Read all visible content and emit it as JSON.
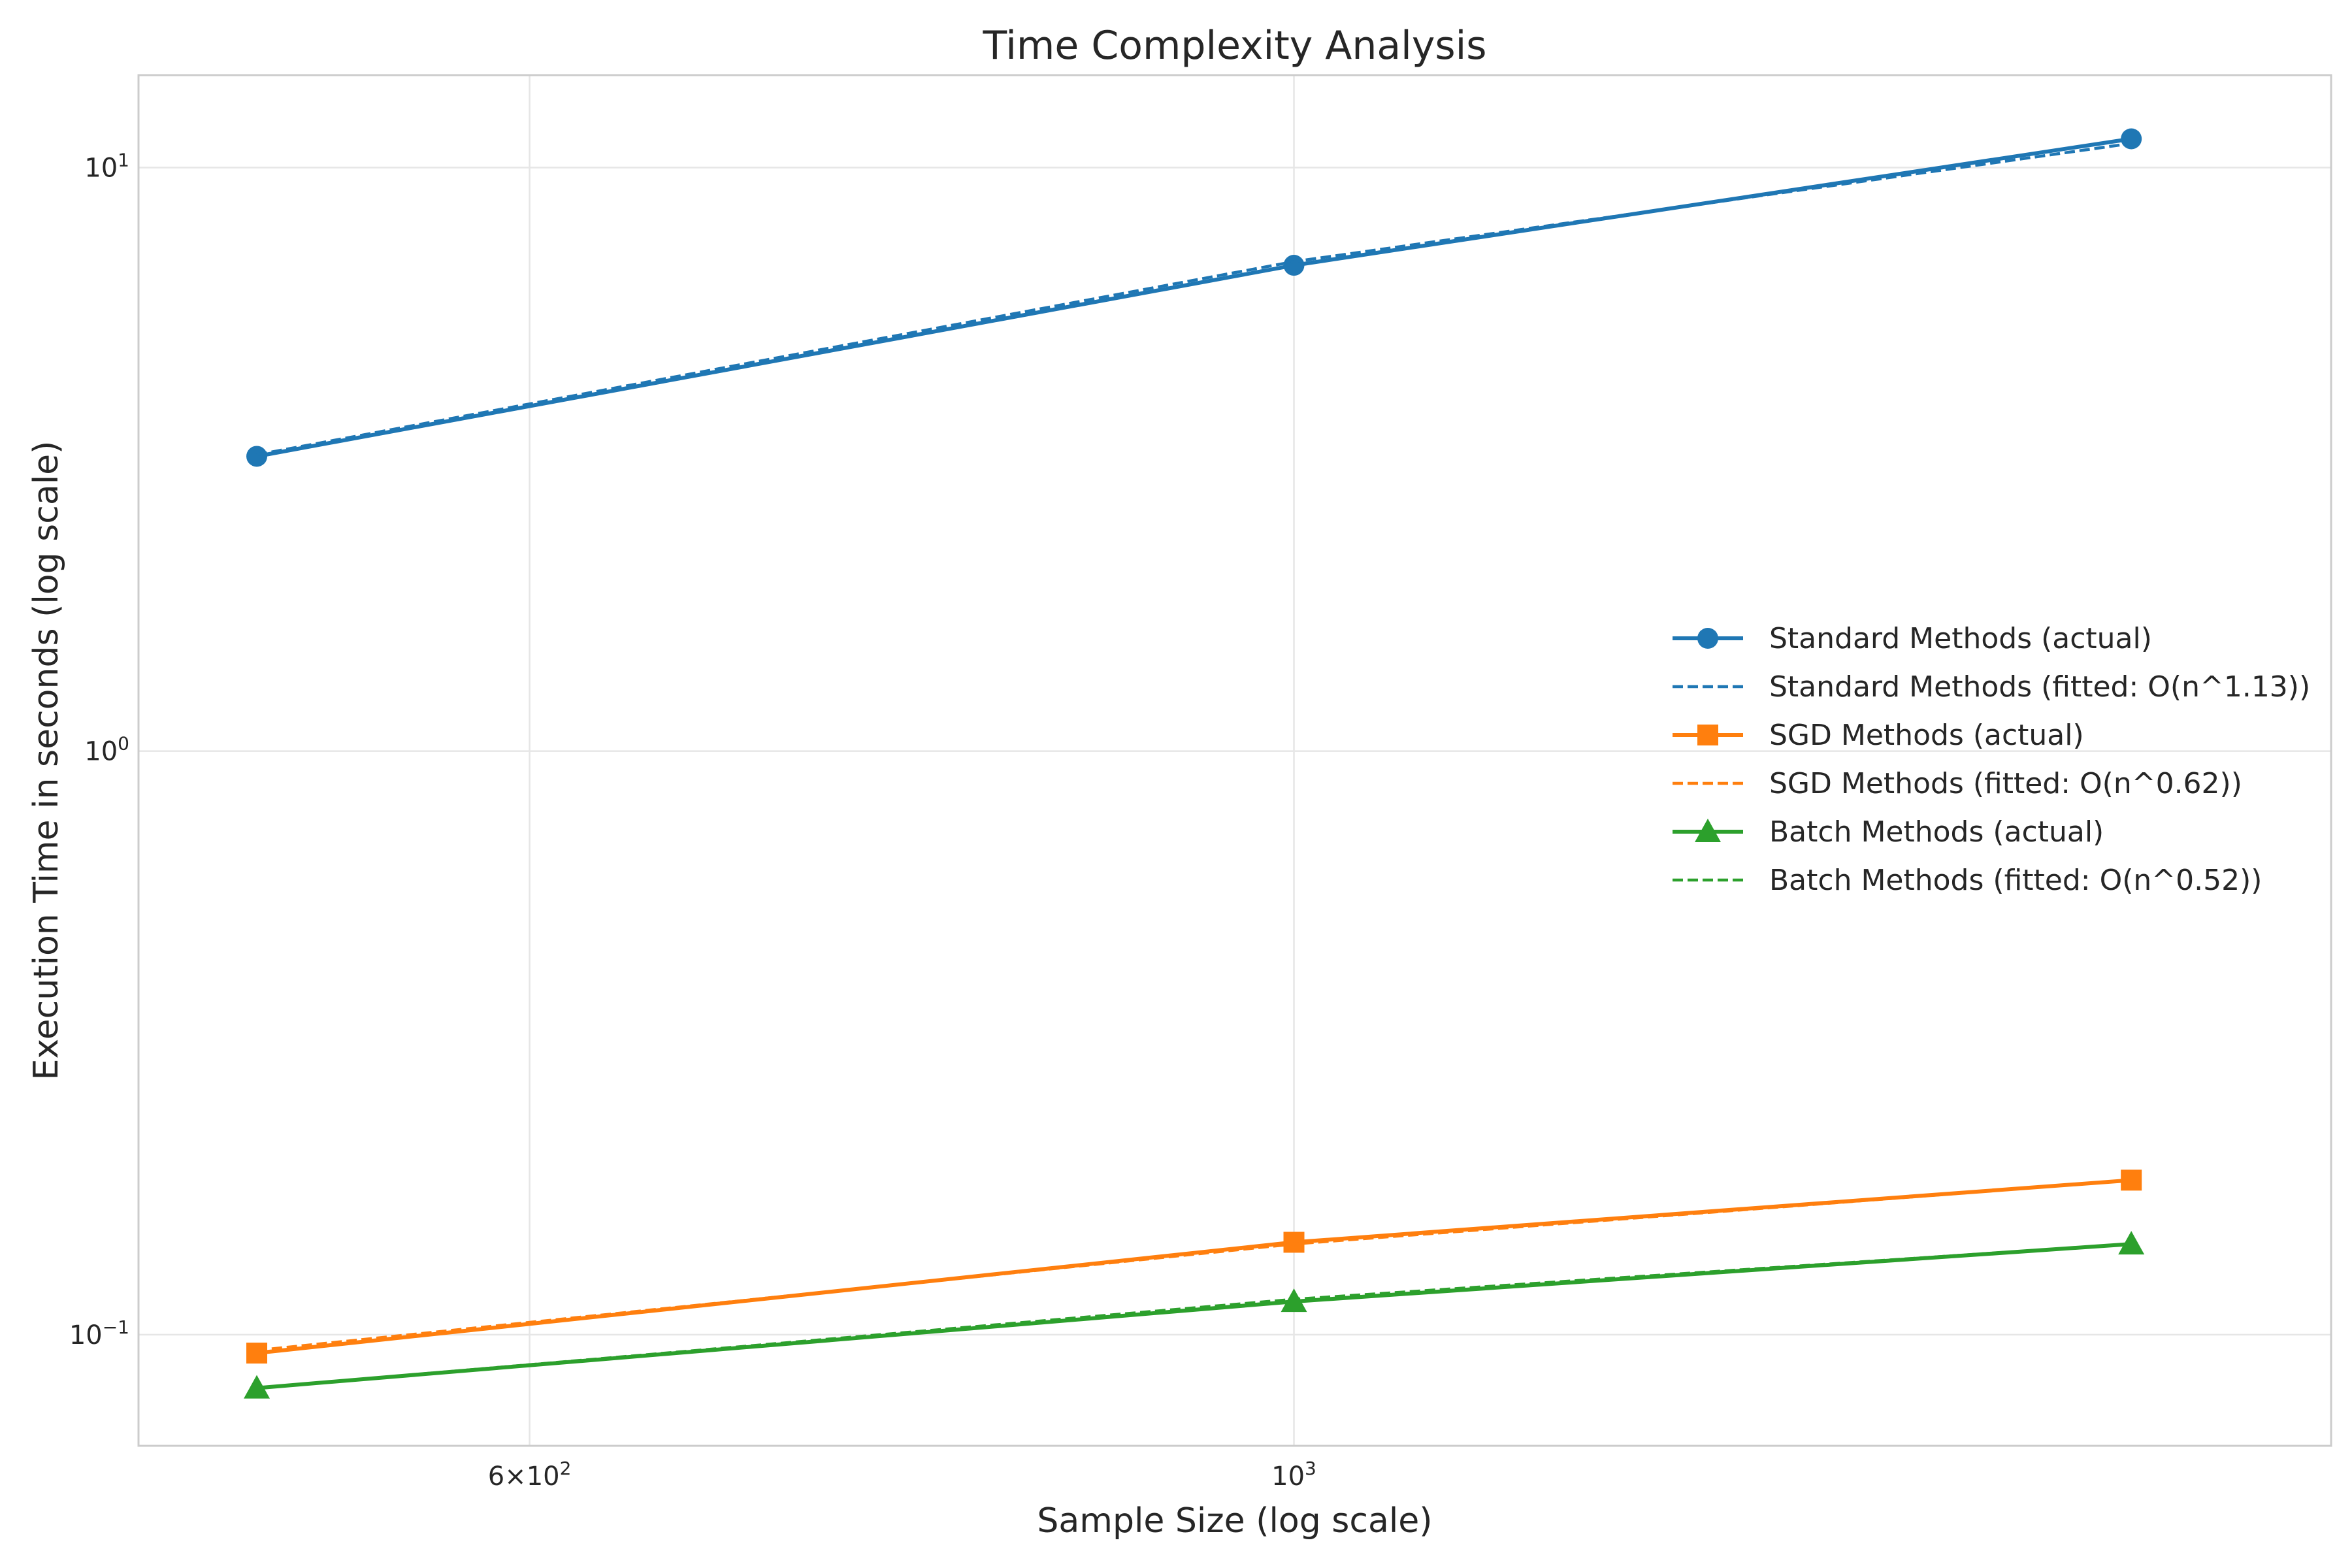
{
  "chart_data": {
    "type": "line",
    "title": "Time Complexity Analysis",
    "xlabel": "Sample Size (log scale)",
    "ylabel": "Execution Time in seconds (log scale)",
    "xscale": "log",
    "yscale": "log",
    "xlim": [
      462,
      2000
    ],
    "ylim": [
      0.0645,
      14.4
    ],
    "x": [
      500,
      1000,
      1750
    ],
    "x_ticks": [
      {
        "value": 600,
        "mantissa": "6",
        "base": "10",
        "exp": "2"
      },
      {
        "value": 1000,
        "mantissa": "",
        "base": "10",
        "exp": "3"
      }
    ],
    "y_ticks": [
      {
        "value": 0.1,
        "base": "10",
        "exp": "−1"
      },
      {
        "value": 1,
        "base": "10",
        "exp": "0"
      },
      {
        "value": 10,
        "base": "10",
        "exp": "1"
      }
    ],
    "grid": true,
    "legend_position": "center-right",
    "series": [
      {
        "name": "Standard Methods (actual)",
        "color": "#1f77b4",
        "style": "solid",
        "marker": "circle",
        "values": [
          3.2,
          6.8,
          11.2
        ]
      },
      {
        "name": "Standard Methods (fitted: O(n^1.13))",
        "color": "#1f77b4",
        "style": "dashed",
        "marker": "none",
        "values": [
          3.22,
          6.9,
          11.0
        ]
      },
      {
        "name": "SGD Methods (actual)",
        "color": "#ff7f0e",
        "style": "solid",
        "marker": "square",
        "values": [
          0.093,
          0.144,
          0.184
        ]
      },
      {
        "name": "SGD Methods (fitted: O(n^0.62))",
        "color": "#ff7f0e",
        "style": "dashed",
        "marker": "none",
        "values": [
          0.094,
          0.143,
          0.184
        ]
      },
      {
        "name": "Batch Methods (actual)",
        "color": "#2ca02c",
        "style": "solid",
        "marker": "triangle",
        "values": [
          0.081,
          0.114,
          0.143
        ]
      },
      {
        "name": "Batch Methods (fitted: O(n^0.52))",
        "color": "#2ca02c",
        "style": "dashed",
        "marker": "none",
        "values": [
          0.081,
          0.115,
          0.143
        ]
      }
    ]
  }
}
